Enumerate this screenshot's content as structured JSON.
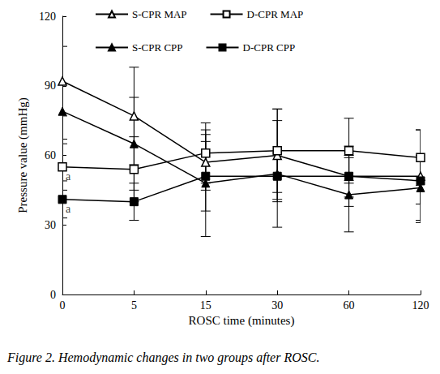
{
  "chart_data": {
    "type": "line",
    "title": "Figure 2. Hemodynamic changes in two groups after ROSC.",
    "x_label": "ROSC time (minutes)",
    "y_label": "Pressure value (mmHg)",
    "categories": [
      "0",
      "5",
      "15",
      "30",
      "60",
      "120"
    ],
    "series": [
      {
        "name": "S-CPR MAP",
        "color": "#000000",
        "marker": "triangle-open",
        "line_style": "solid",
        "values": [
          92,
          77,
          57,
          60,
          51,
          51
        ],
        "errors": [
          15,
          21,
          12,
          20,
          13,
          20
        ]
      },
      {
        "name": "D-CPR MAP",
        "color": "#000000",
        "marker": "square-open",
        "line_style": "solid",
        "values": [
          55,
          54,
          61,
          62,
          62,
          59
        ],
        "errors": [
          10,
          14,
          13,
          18,
          14,
          12
        ]
      },
      {
        "name": "S-CPR CPP",
        "color": "#000000",
        "marker": "triangle",
        "line_style": "solid",
        "values": [
          79,
          65,
          48,
          52,
          43,
          46
        ],
        "errors": [
          12,
          20,
          23,
          23,
          16,
          14
        ]
      },
      {
        "name": "D-CPR CPP",
        "color": "#000000",
        "marker": "square",
        "line_style": "solid",
        "values": [
          41,
          40,
          51,
          51,
          51,
          49
        ],
        "errors": [
          8,
          8,
          15,
          10,
          9,
          10
        ]
      }
    ],
    "annotations": [
      {
        "text": "a",
        "x": "0",
        "y": 55
      },
      {
        "text": "a",
        "x": "0",
        "y": 41
      }
    ],
    "ylim": [
      0,
      120
    ],
    "yticks": [
      0,
      30,
      60,
      90,
      120
    ],
    "grid": false,
    "legend": "top"
  }
}
